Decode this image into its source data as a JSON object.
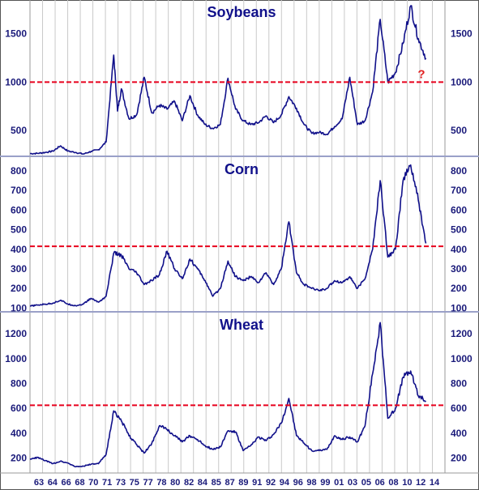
{
  "chart_data": [
    {
      "type": "line",
      "title": "Soybeans",
      "ylim": [
        240,
        1850
      ],
      "yticks": [
        500,
        1000,
        1500
      ],
      "reference_line": {
        "value": 1000,
        "color": "#e8001c",
        "label": "?"
      },
      "series": [
        {
          "color": "#10108a",
          "points": [
            [
              1962,
              260
            ],
            [
              1963,
              262
            ],
            [
              1964,
              272
            ],
            [
              1965,
              285
            ],
            [
              1966,
              340
            ],
            [
              1967,
              285
            ],
            [
              1968,
              272
            ],
            [
              1969,
              255
            ],
            [
              1970,
              282
            ],
            [
              1971,
              300
            ],
            [
              1972,
              380
            ],
            [
              1973,
              1280
            ],
            [
              1973.5,
              700
            ],
            [
              1974,
              930
            ],
            [
              1975,
              620
            ],
            [
              1976,
              660
            ],
            [
              1977,
              1050
            ],
            [
              1978,
              680
            ],
            [
              1979,
              760
            ],
            [
              1980,
              720
            ],
            [
              1981,
              800
            ],
            [
              1982,
              600
            ],
            [
              1983,
              860
            ],
            [
              1984,
              660
            ],
            [
              1985,
              560
            ],
            [
              1986,
              520
            ],
            [
              1987,
              560
            ],
            [
              1988,
              1040
            ],
            [
              1989,
              720
            ],
            [
              1990,
              600
            ],
            [
              1991,
              560
            ],
            [
              1992,
              580
            ],
            [
              1993,
              650
            ],
            [
              1994,
              580
            ],
            [
              1995,
              660
            ],
            [
              1996,
              850
            ],
            [
              1997,
              730
            ],
            [
              1998,
              560
            ],
            [
              1999,
              470
            ],
            [
              2000,
              480
            ],
            [
              2001,
              460
            ],
            [
              2002,
              540
            ],
            [
              2003,
              620
            ],
            [
              2004,
              1050
            ],
            [
              2005,
              560
            ],
            [
              2006,
              600
            ],
            [
              2007,
              900
            ],
            [
              2008,
              1650
            ],
            [
              2009,
              1000
            ],
            [
              2010,
              1100
            ],
            [
              2011,
              1400
            ],
            [
              2012,
              1790
            ],
            [
              2013,
              1450
            ],
            [
              2014,
              1250
            ]
          ]
        }
      ]
    },
    {
      "type": "line",
      "title": "Corn",
      "ylim": [
        85,
        870
      ],
      "yticks": [
        100,
        200,
        300,
        400,
        500,
        600,
        700,
        800
      ],
      "reference_line": {
        "value": 415,
        "color": "#e8001c"
      },
      "series": [
        {
          "color": "#10108a",
          "points": [
            [
              1962,
              110
            ],
            [
              1963,
              115
            ],
            [
              1964,
              120
            ],
            [
              1965,
              125
            ],
            [
              1966,
              140
            ],
            [
              1967,
              120
            ],
            [
              1968,
              112
            ],
            [
              1969,
              120
            ],
            [
              1970,
              150
            ],
            [
              1971,
              130
            ],
            [
              1972,
              160
            ],
            [
              1973,
              380
            ],
            [
              1974,
              370
            ],
            [
              1975,
              300
            ],
            [
              1976,
              280
            ],
            [
              1977,
              220
            ],
            [
              1978,
              240
            ],
            [
              1979,
              270
            ],
            [
              1980,
              390
            ],
            [
              1981,
              300
            ],
            [
              1982,
              250
            ],
            [
              1983,
              350
            ],
            [
              1984,
              300
            ],
            [
              1985,
              240
            ],
            [
              1986,
              160
            ],
            [
              1987,
              200
            ],
            [
              1988,
              340
            ],
            [
              1989,
              260
            ],
            [
              1990,
              240
            ],
            [
              1991,
              260
            ],
            [
              1992,
              230
            ],
            [
              1993,
              280
            ],
            [
              1994,
              220
            ],
            [
              1995,
              300
            ],
            [
              1996,
              540
            ],
            [
              1997,
              280
            ],
            [
              1998,
              220
            ],
            [
              1999,
              200
            ],
            [
              2000,
              190
            ],
            [
              2001,
              200
            ],
            [
              2002,
              240
            ],
            [
              2003,
              230
            ],
            [
              2004,
              260
            ],
            [
              2005,
              200
            ],
            [
              2006,
              250
            ],
            [
              2007,
              400
            ],
            [
              2008,
              750
            ],
            [
              2009,
              360
            ],
            [
              2010,
              400
            ],
            [
              2011,
              750
            ],
            [
              2012,
              830
            ],
            [
              2013,
              650
            ],
            [
              2014,
              430
            ]
          ]
        }
      ]
    },
    {
      "type": "line",
      "title": "Wheat",
      "ylim": [
        80,
        1370
      ],
      "yticks": [
        200,
        400,
        600,
        800,
        1000,
        1200
      ],
      "reference_line": {
        "value": 625,
        "color": "#e8001c"
      },
      "series": [
        {
          "color": "#10108a",
          "points": [
            [
              1962,
              190
            ],
            [
              1963,
              205
            ],
            [
              1964,
              180
            ],
            [
              1965,
              155
            ],
            [
              1966,
              175
            ],
            [
              1967,
              160
            ],
            [
              1968,
              130
            ],
            [
              1969,
              135
            ],
            [
              1970,
              150
            ],
            [
              1971,
              155
            ],
            [
              1972,
              230
            ],
            [
              1973,
              580
            ],
            [
              1974,
              500
            ],
            [
              1975,
              380
            ],
            [
              1976,
              310
            ],
            [
              1977,
              240
            ],
            [
              1978,
              320
            ],
            [
              1979,
              460
            ],
            [
              1980,
              430
            ],
            [
              1981,
              380
            ],
            [
              1982,
              330
            ],
            [
              1983,
              380
            ],
            [
              1984,
              350
            ],
            [
              1985,
              300
            ],
            [
              1986,
              270
            ],
            [
              1987,
              290
            ],
            [
              1988,
              420
            ],
            [
              1989,
              410
            ],
            [
              1990,
              260
            ],
            [
              1991,
              300
            ],
            [
              1992,
              370
            ],
            [
              1993,
              340
            ],
            [
              1994,
              390
            ],
            [
              1995,
              480
            ],
            [
              1996,
              680
            ],
            [
              1997,
              380
            ],
            [
              1998,
              320
            ],
            [
              1999,
              260
            ],
            [
              2000,
              260
            ],
            [
              2001,
              270
            ],
            [
              2002,
              380
            ],
            [
              2003,
              350
            ],
            [
              2004,
              370
            ],
            [
              2005,
              330
            ],
            [
              2006,
              460
            ],
            [
              2007,
              880
            ],
            [
              2008,
              1290
            ],
            [
              2009,
              520
            ],
            [
              2010,
              600
            ],
            [
              2011,
              850
            ],
            [
              2012,
              900
            ],
            [
              2013,
              700
            ],
            [
              2014,
              660
            ]
          ]
        }
      ]
    }
  ],
  "xaxis": {
    "labels": [
      "63",
      "64",
      "66",
      "68",
      "70",
      "71",
      "73",
      "75",
      "77",
      "78",
      "80",
      "82",
      "84",
      "85",
      "87",
      "89",
      "91",
      "92",
      "94",
      "96",
      "98",
      "99",
      "01",
      "03",
      "05",
      "06",
      "08",
      "10",
      "12",
      "14"
    ]
  }
}
